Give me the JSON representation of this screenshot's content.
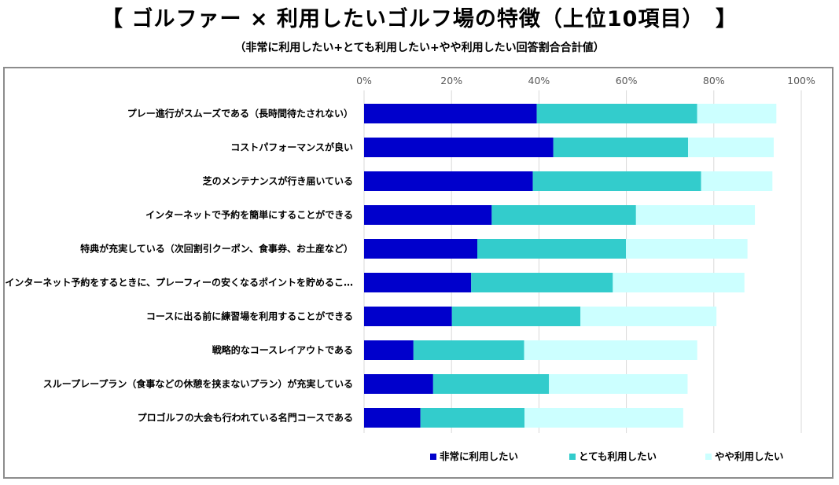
{
  "title": "【 ゴルファー × 利用したいゴルフ場の特徴（上位10項目）　】",
  "subtitle": "（非常に利用したい+とても利用したい+やや利用したい回答割合合計値）",
  "colors": {
    "series1": "#0000cc",
    "series2": "#33cccc",
    "series3": "#ccffff",
    "grid": "#d9d9d9"
  },
  "chart_data": {
    "type": "bar",
    "orientation": "horizontal",
    "stacked": true,
    "xlim": [
      0,
      100
    ],
    "ticks": [
      "0%",
      "20%",
      "40%",
      "60%",
      "80%",
      "100%"
    ],
    "tick_values": [
      0,
      20,
      40,
      60,
      80,
      100
    ],
    "categories": [
      "プレー進行がスムーズである（長時間待たされない）",
      "コストパフォーマンスが良い",
      "芝のメンテナンスが行き届いている",
      "インターネットで予約を簡単にすることができる",
      "特典が充実している（次回割引クーポン、食事券、お土産など）",
      "インターネット予約をするときに、プレーフィーの安くなるポイントを貯めるこ…",
      "コースに出る前に練習場を利用することができる",
      "戦略的なコースレイアウトである",
      "スループレープラン（食事などの休憩を挟まないプラン）が充実している",
      "プロゴルフの大会も行われている名門コースである"
    ],
    "series": [
      {
        "name": "非常に利用したい",
        "values": [
          39.5,
          43.3,
          38.6,
          29.2,
          25.9,
          24.5,
          20.1,
          11.3,
          15.8,
          12.9
        ]
      },
      {
        "name": "とても利用したい",
        "values": [
          36.7,
          30.8,
          38.5,
          33.0,
          34.0,
          32.4,
          29.4,
          25.3,
          26.5,
          23.8
        ]
      },
      {
        "name": "やや利用したい",
        "values": [
          18.1,
          19.6,
          16.3,
          27.2,
          27.8,
          30.1,
          31.1,
          39.6,
          31.7,
          36.3
        ]
      }
    ],
    "legend_position": "bottom"
  }
}
